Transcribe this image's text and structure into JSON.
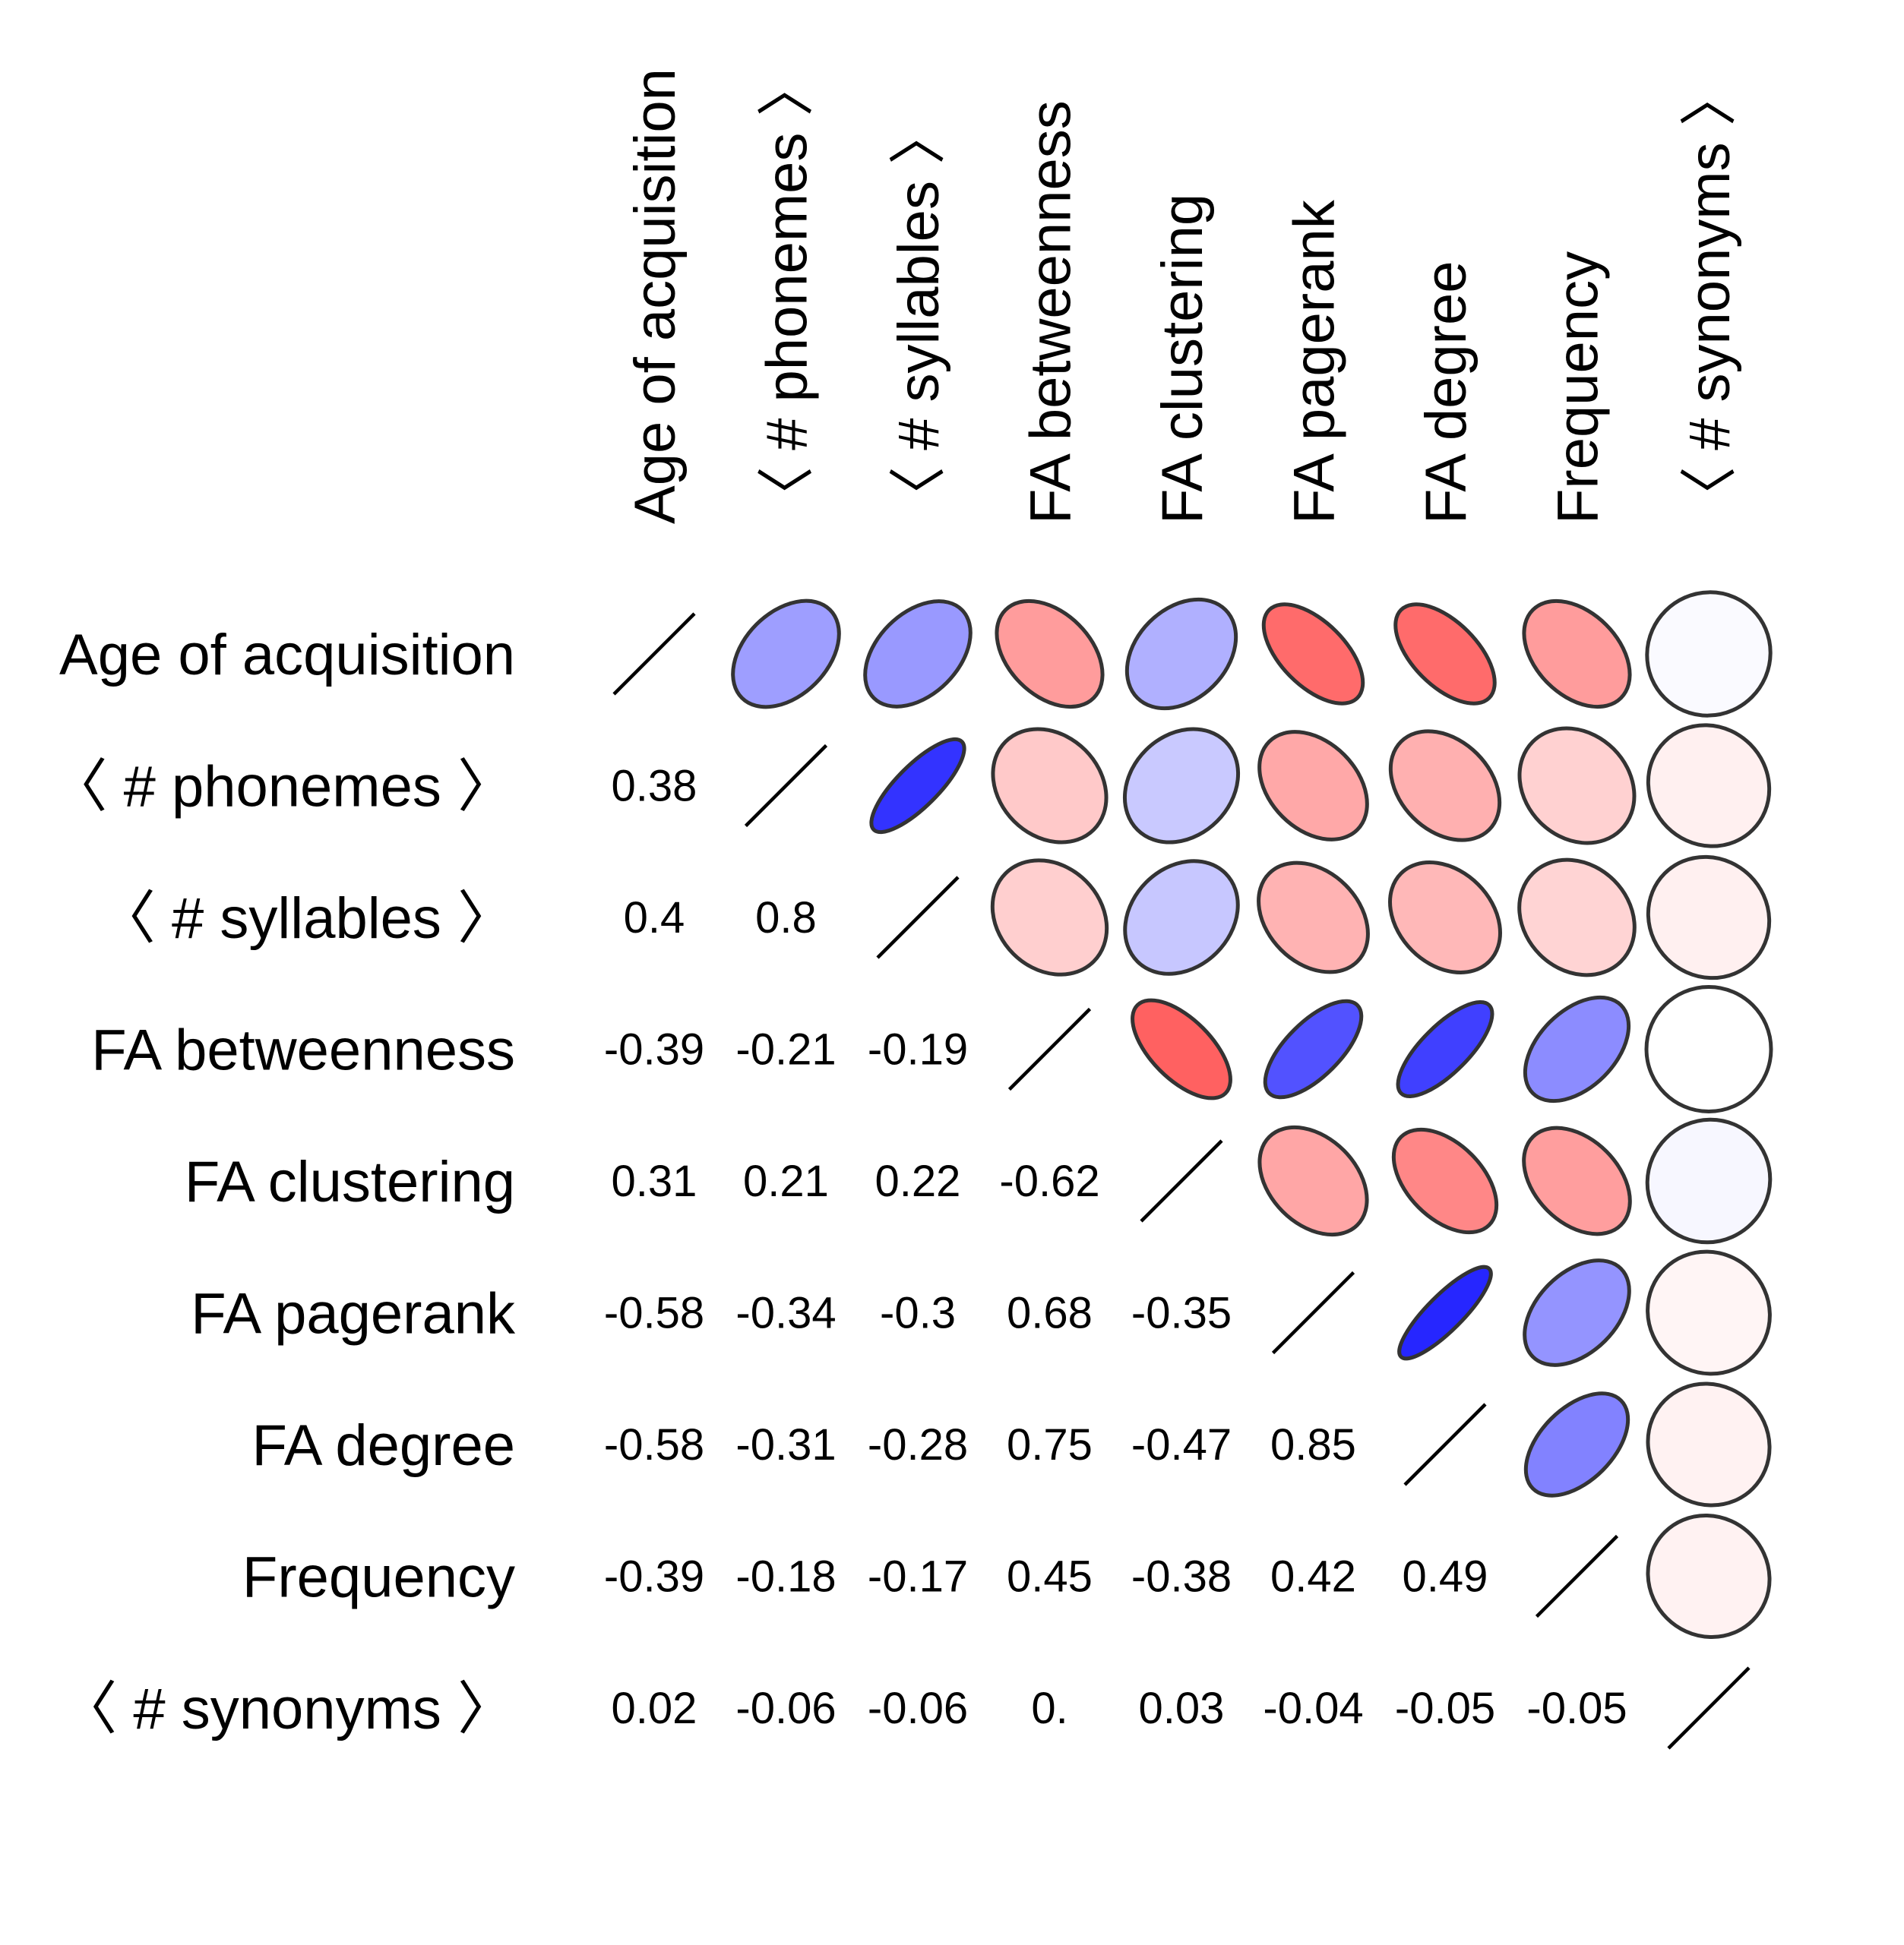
{
  "chart_data": {
    "type": "heatmap",
    "title": "",
    "labels": [
      "Age of acquisition",
      "〈 # phonemes 〉",
      "〈 # syllables 〉",
      "FA betweenness",
      "FA clustering",
      "FA pagerank",
      "FA degree",
      "Frequency",
      "〈 # synonyms 〉"
    ],
    "lower_triangle_text": [
      [],
      [
        "0.38"
      ],
      [
        "0.4",
        "0.8"
      ],
      [
        "-0.39",
        "-0.21",
        "-0.19"
      ],
      [
        "0.31",
        "0.21",
        "0.22",
        "-0.62"
      ],
      [
        "-0.58",
        "-0.34",
        "-0.3",
        "0.68",
        "-0.35"
      ],
      [
        "-0.58",
        "-0.31",
        "-0.28",
        "0.75",
        "-0.47",
        "0.85"
      ],
      [
        "-0.39",
        "-0.18",
        "-0.17",
        "0.45",
        "-0.38",
        "0.42",
        "0.49"
      ],
      [
        "0.02",
        "-0.06",
        "-0.06",
        "0.",
        "0.03",
        "-0.04",
        "-0.05",
        "-0.05"
      ]
    ],
    "correlation_matrix": [
      [
        1,
        0.38,
        0.4,
        -0.39,
        0.31,
        -0.58,
        -0.58,
        -0.39,
        0.02
      ],
      [
        0.38,
        1,
        0.8,
        -0.21,
        0.21,
        -0.34,
        -0.31,
        -0.18,
        -0.06
      ],
      [
        0.4,
        0.8,
        1,
        -0.19,
        0.22,
        -0.3,
        -0.28,
        -0.17,
        -0.06
      ],
      [
        -0.39,
        -0.21,
        -0.19,
        1,
        -0.62,
        0.68,
        0.75,
        0.45,
        0.0
      ],
      [
        0.31,
        0.21,
        0.22,
        -0.62,
        1,
        -0.35,
        -0.47,
        -0.38,
        0.03
      ],
      [
        -0.58,
        -0.34,
        -0.3,
        0.68,
        -0.35,
        1,
        0.85,
        0.42,
        -0.04
      ],
      [
        -0.58,
        -0.31,
        -0.28,
        0.75,
        -0.47,
        0.85,
        1,
        0.49,
        -0.05
      ],
      [
        -0.39,
        -0.18,
        -0.17,
        0.45,
        -0.38,
        0.42,
        0.49,
        1,
        -0.05
      ],
      [
        0.02,
        -0.06,
        -0.06,
        0.0,
        0.03,
        -0.04,
        -0.05,
        -0.05,
        1
      ]
    ],
    "upper_triangle_glyph": "ellipse",
    "diagonal_glyph": "line",
    "colors": {
      "positive": "#0000ff",
      "negative": "#ff0000",
      "outline": "#333333",
      "text": "#000000"
    }
  }
}
